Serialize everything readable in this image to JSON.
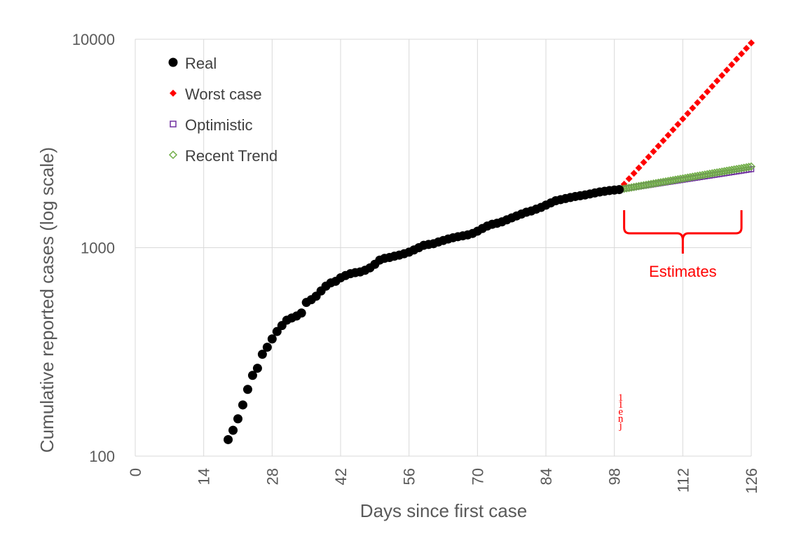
{
  "chart_data": {
    "type": "scatter",
    "title": "",
    "xlabel": "Days since first case",
    "ylabel": "Cumulative reported cases (log scale)",
    "x_ticks": [
      0,
      14,
      28,
      42,
      56,
      70,
      84,
      98,
      112,
      126
    ],
    "y_ticks": [
      {
        "value": 100,
        "label": "100"
      },
      {
        "value": 1000,
        "label": "1000"
      },
      {
        "value": 10000,
        "label": "10000"
      }
    ],
    "xlim": [
      0,
      126
    ],
    "ylim": [
      100,
      10000
    ],
    "y_scale": "log",
    "grid": true,
    "legend_position": "top-left",
    "series": [
      {
        "name": "Real",
        "color": "#000000",
        "marker": "circle",
        "points": [
          [
            19,
            120
          ],
          [
            20,
            133
          ],
          [
            21,
            151
          ],
          [
            22,
            176
          ],
          [
            23,
            209
          ],
          [
            24,
            244
          ],
          [
            25,
            264
          ],
          [
            26,
            308
          ],
          [
            27,
            333
          ],
          [
            28,
            365
          ],
          [
            29,
            396
          ],
          [
            30,
            423
          ],
          [
            31,
            449
          ],
          [
            32,
            460
          ],
          [
            33,
            470
          ],
          [
            34,
            486
          ],
          [
            35,
            546
          ],
          [
            36,
            563
          ],
          [
            37,
            585
          ],
          [
            38,
            620
          ],
          [
            39,
            654
          ],
          [
            40,
            678
          ],
          [
            41,
            690
          ],
          [
            42,
            717
          ],
          [
            43,
            735
          ],
          [
            44,
            750
          ],
          [
            45,
            759
          ],
          [
            46,
            765
          ],
          [
            47,
            779
          ],
          [
            48,
            800
          ],
          [
            49,
            832
          ],
          [
            50,
            872
          ],
          [
            51,
            889
          ],
          [
            52,
            897
          ],
          [
            53,
            910
          ],
          [
            54,
            921
          ],
          [
            55,
            935
          ],
          [
            56,
            952
          ],
          [
            57,
            975
          ],
          [
            58,
            1000
          ],
          [
            59,
            1026
          ],
          [
            60,
            1036
          ],
          [
            61,
            1045
          ],
          [
            62,
            1065
          ],
          [
            63,
            1083
          ],
          [
            64,
            1100
          ],
          [
            65,
            1116
          ],
          [
            66,
            1129
          ],
          [
            67,
            1140
          ],
          [
            68,
            1152
          ],
          [
            69,
            1170
          ],
          [
            70,
            1200
          ],
          [
            71,
            1236
          ],
          [
            72,
            1270
          ],
          [
            73,
            1295
          ],
          [
            74,
            1310
          ],
          [
            75,
            1330
          ],
          [
            76,
            1360
          ],
          [
            77,
            1390
          ],
          [
            78,
            1420
          ],
          [
            79,
            1450
          ],
          [
            80,
            1480
          ],
          [
            81,
            1500
          ],
          [
            82,
            1530
          ],
          [
            83,
            1560
          ],
          [
            84,
            1600
          ],
          [
            85,
            1640
          ],
          [
            86,
            1680
          ],
          [
            87,
            1700
          ],
          [
            88,
            1720
          ],
          [
            89,
            1740
          ],
          [
            90,
            1760
          ],
          [
            91,
            1775
          ],
          [
            92,
            1790
          ],
          [
            93,
            1810
          ],
          [
            94,
            1830
          ],
          [
            95,
            1850
          ],
          [
            96,
            1865
          ],
          [
            97,
            1880
          ],
          [
            98,
            1890
          ],
          [
            99,
            1900
          ]
        ]
      },
      {
        "name": "Worst case",
        "color": "#ff0000",
        "marker": "diamond",
        "start": [
          99,
          1900
        ],
        "end": [
          126,
          9600
        ],
        "step": 1
      },
      {
        "name": "Optimistic",
        "color": "#7030a0",
        "marker": "square-open",
        "start": [
          99,
          1900
        ],
        "end": [
          126,
          2380
        ],
        "step": 0.5
      },
      {
        "name": "Recent Trend",
        "color": "#70ad47",
        "marker": "diamond-open",
        "start": [
          99,
          1900
        ],
        "end": [
          126,
          2450
        ],
        "step": 0.5
      }
    ],
    "annotations": [
      {
        "text": "Estimates",
        "color": "#ff0000",
        "brace_x": [
          100,
          124
        ],
        "brace_y": 1200
      },
      {
        "text": "1",
        "color": "#ff0000"
      },
      {
        "text": "1",
        "color": "#ff0000"
      },
      {
        "text": "e",
        "color": "#ff0000"
      },
      {
        "text": "n",
        "color": "#ff0000"
      },
      {
        "text": "j",
        "color": "#ff0000"
      }
    ]
  }
}
